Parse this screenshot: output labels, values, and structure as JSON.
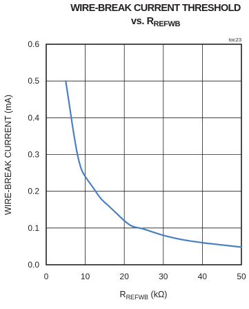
{
  "chart_data": {
    "type": "line",
    "title": "WIRE-BREAK CURRENT THRESHOLD",
    "subtitle_prefix": "vs. R",
    "subtitle_sub": "REFWB",
    "toc_label": "toc23",
    "ylabel": "WIRE-BREAK CURRENT (mA)",
    "xlabel_main": "R",
    "xlabel_sub": "REFWB",
    "xlabel_unit": " (kΩ)",
    "xlim": [
      0,
      50
    ],
    "ylim": [
      0,
      0.6
    ],
    "x_ticks": [
      "0",
      "10",
      "20",
      "30",
      "40",
      "50"
    ],
    "y_ticks": [
      "0.0",
      "0.1",
      "0.2",
      "0.3",
      "0.4",
      "0.5",
      "0.6"
    ],
    "grid": true,
    "line_color": "#4a7fc0",
    "series": [
      {
        "x": [
          5,
          6,
          7,
          8,
          9,
          10,
          12,
          14,
          16,
          18,
          20,
          22,
          25,
          30,
          35,
          40,
          45,
          50
        ],
        "y": [
          0.5,
          0.43,
          0.36,
          0.3,
          0.26,
          0.24,
          0.21,
          0.18,
          0.16,
          0.14,
          0.12,
          0.105,
          0.097,
          0.08,
          0.068,
          0.06,
          0.054,
          0.048
        ]
      }
    ]
  }
}
